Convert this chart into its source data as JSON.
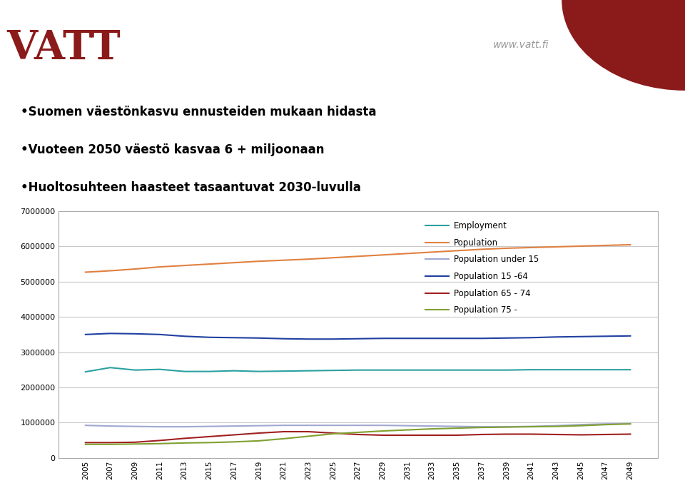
{
  "years": [
    2005,
    2007,
    2009,
    2011,
    2013,
    2015,
    2017,
    2019,
    2021,
    2023,
    2025,
    2027,
    2029,
    2031,
    2033,
    2035,
    2037,
    2039,
    2041,
    2043,
    2045,
    2047,
    2049
  ],
  "employment": [
    2440000,
    2560000,
    2490000,
    2510000,
    2450000,
    2450000,
    2470000,
    2450000,
    2460000,
    2470000,
    2480000,
    2490000,
    2490000,
    2490000,
    2490000,
    2490000,
    2490000,
    2490000,
    2500000,
    2500000,
    2500000,
    2500000,
    2500000
  ],
  "population": [
    5270000,
    5310000,
    5360000,
    5420000,
    5460000,
    5500000,
    5540000,
    5580000,
    5610000,
    5640000,
    5680000,
    5720000,
    5760000,
    5800000,
    5840000,
    5880000,
    5920000,
    5950000,
    5970000,
    5990000,
    6010000,
    6030000,
    6050000
  ],
  "pop_under15": [
    920000,
    900000,
    890000,
    880000,
    880000,
    890000,
    900000,
    910000,
    920000,
    920000,
    920000,
    920000,
    920000,
    910000,
    900000,
    890000,
    880000,
    880000,
    890000,
    910000,
    940000,
    960000,
    970000
  ],
  "pop_15_64": [
    3500000,
    3530000,
    3520000,
    3500000,
    3450000,
    3420000,
    3410000,
    3400000,
    3380000,
    3370000,
    3370000,
    3380000,
    3390000,
    3390000,
    3390000,
    3390000,
    3390000,
    3400000,
    3410000,
    3430000,
    3440000,
    3450000,
    3460000
  ],
  "pop_65_74": [
    430000,
    430000,
    440000,
    490000,
    550000,
    600000,
    650000,
    700000,
    740000,
    740000,
    700000,
    660000,
    640000,
    640000,
    640000,
    640000,
    660000,
    670000,
    670000,
    660000,
    650000,
    660000,
    670000
  ],
  "pop_75plus": [
    380000,
    380000,
    390000,
    400000,
    420000,
    430000,
    450000,
    480000,
    540000,
    610000,
    680000,
    720000,
    760000,
    790000,
    820000,
    840000,
    860000,
    870000,
    880000,
    890000,
    910000,
    940000,
    960000
  ],
  "line_colors": {
    "employment": "#2ca0a0",
    "population": "#e08040",
    "pop_under15": "#a0a8d0",
    "pop_15_64": "#2040a0",
    "pop_65_74": "#a02020",
    "pop_75plus": "#80a030"
  },
  "legend_labels": [
    "Employment",
    "Population",
    "Population under 15",
    "Population 15 -64",
    "Population 65 - 74",
    "Population 75 -"
  ],
  "ylim": [
    0,
    7000000
  ],
  "yticks": [
    0,
    1000000,
    2000000,
    3000000,
    4000000,
    5000000,
    6000000,
    7000000
  ],
  "title_lines": [
    "•Suomen väestönkasvu ennusteiden mukaan hidasta",
    "•Vuoteen 2050 väestö kasvaa 6 + miljoonaan",
    "•Huoltosuhteen haasteet tasaantuvat 2030-luvulla"
  ],
  "bg_color": "#ffffff",
  "plot_bg": "#ffffff",
  "grid_color": "#c8c8c8",
  "box_color": "#aaaaaa",
  "vatt_text": "www.vatt.fi",
  "logo_color": "#8b1a1a",
  "corner_color": "#8b1a1a"
}
